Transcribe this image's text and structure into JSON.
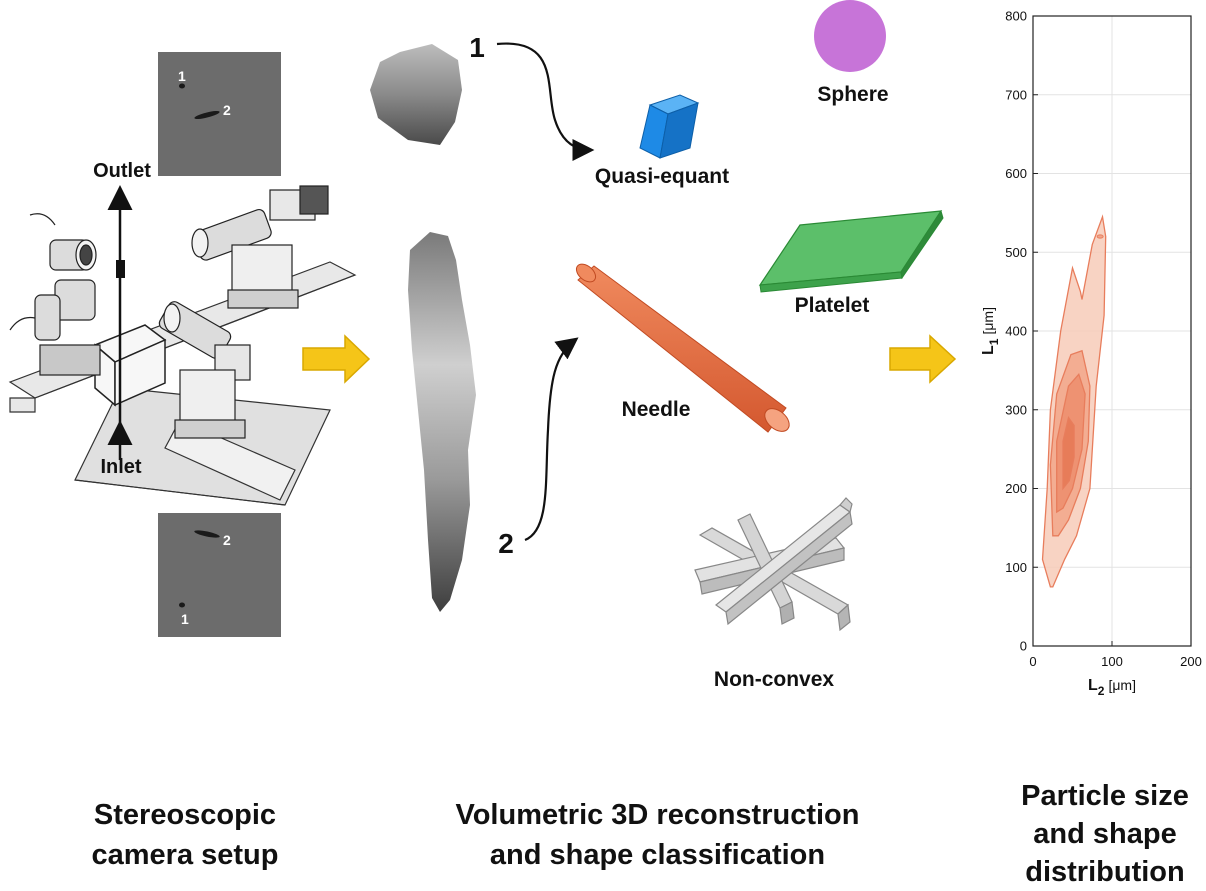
{
  "setup": {
    "outlet_label": "Outlet",
    "inlet_label": "Inlet",
    "top_image": {
      "particle_1": "1",
      "particle_2": "2"
    },
    "bottom_image": {
      "particle_1": "1",
      "particle_2": "2"
    }
  },
  "reconstruction": {
    "marker_1": "1",
    "marker_2": "2"
  },
  "shapes": {
    "sphere": "Sphere",
    "quasi_equant": "Quasi-equant",
    "platelet": "Platelet",
    "needle": "Needle",
    "non_convex": "Non-convex"
  },
  "colors": {
    "sphere": "#c774d8",
    "quasi_equant": "#1e8ae6",
    "platelet": "#5cbf6a",
    "needle": "#e06a43",
    "non_convex": "#d9d9d9",
    "arrow": "#f5c518",
    "contour": "#e87d5c"
  },
  "captions": {
    "left_line1": "Stereoscopic",
    "left_line2": "camera setup",
    "middle_line1": "Volumetric 3D reconstruction",
    "middle_line2": "and shape classification",
    "right_line1": "Particle size",
    "right_line2": "and shape",
    "right_line3": "distribution"
  },
  "chart_data": {
    "type": "contour",
    "xlabel_main": "L",
    "xlabel_sub": "2",
    "xlabel_unit": "[μm]",
    "ylabel_main": "L",
    "ylabel_sub": "1",
    "ylabel_unit": "[μm]",
    "xlim": [
      0,
      200
    ],
    "ylim": [
      0,
      800
    ],
    "xticks": [
      0,
      100,
      200
    ],
    "yticks": [
      0,
      100,
      200,
      300,
      400,
      500,
      600,
      700,
      800
    ],
    "grid": true,
    "contours": [
      {
        "level": 1,
        "points": [
          [
            22,
            75
          ],
          [
            12,
            110
          ],
          [
            18,
            200
          ],
          [
            22,
            300
          ],
          [
            35,
            400
          ],
          [
            50,
            480
          ],
          [
            60,
            450
          ],
          [
            62,
            440
          ],
          [
            75,
            510
          ],
          [
            88,
            545
          ],
          [
            92,
            520
          ],
          [
            90,
            420
          ],
          [
            80,
            330
          ],
          [
            72,
            200
          ],
          [
            55,
            140
          ],
          [
            40,
            110
          ],
          [
            25,
            75
          ]
        ]
      },
      {
        "level": 2,
        "points": [
          [
            25,
            140
          ],
          [
            22,
            230
          ],
          [
            30,
            320
          ],
          [
            48,
            370
          ],
          [
            62,
            375
          ],
          [
            72,
            330
          ],
          [
            70,
            260
          ],
          [
            60,
            200
          ],
          [
            45,
            160
          ],
          [
            32,
            140
          ]
        ]
      },
      {
        "level": 3,
        "points": [
          [
            30,
            170
          ],
          [
            30,
            260
          ],
          [
            45,
            330
          ],
          [
            58,
            345
          ],
          [
            66,
            320
          ],
          [
            62,
            250
          ],
          [
            50,
            200
          ],
          [
            38,
            175
          ]
        ]
      },
      {
        "level": 4,
        "points": [
          [
            38,
            200
          ],
          [
            38,
            260
          ],
          [
            45,
            290
          ],
          [
            52,
            280
          ],
          [
            52,
            240
          ],
          [
            46,
            210
          ]
        ]
      }
    ],
    "outlier": {
      "x": 85,
      "y": 520
    }
  }
}
